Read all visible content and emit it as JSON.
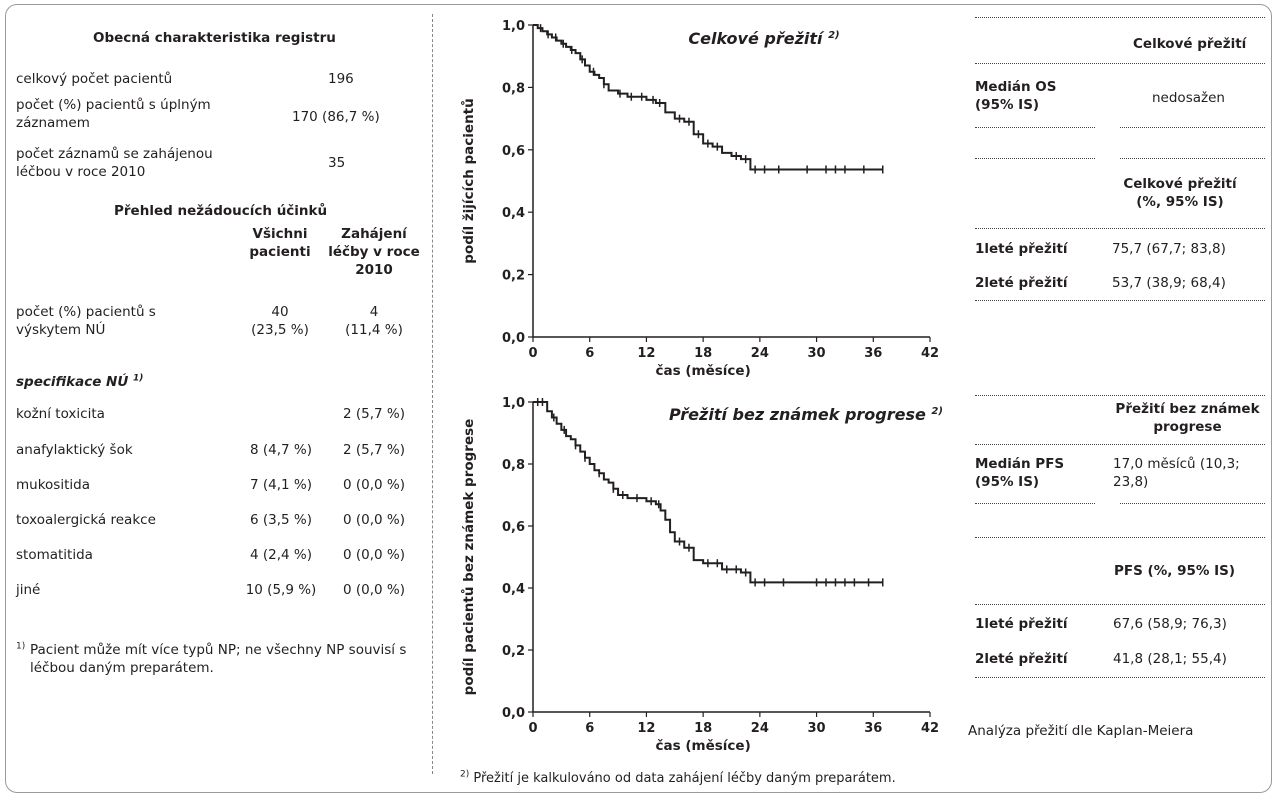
{
  "left": {
    "general_title": "Obecná charakteristika registru",
    "rows": [
      {
        "label": "celkový počet pacientů",
        "value": "196"
      },
      {
        "label": "počet (%) pacientů s úplným záznamem",
        "value": "170 (86,7 %)"
      },
      {
        "label": "počet záznamů se zahájenou léčbou v roce 2010",
        "value": "35"
      }
    ],
    "ae_title": "Přehled nežádoucích účinků",
    "col_all": "Všichni pacienti",
    "col_2010": "Zahájení léčby v roce 2010",
    "ae_count_label": "počet (%) pacientů s výskytem NÚ",
    "ae_count_all": "40",
    "ae_count_all_pct": "(23,5 %)",
    "ae_count_2010": "4",
    "ae_count_2010_pct": "(11,4 %)",
    "spec_label": "specifikace NÚ",
    "spec_sup": "1)",
    "ae_rows": [
      {
        "label": "kožní toxicita",
        "all": "",
        "y2010": "2 (5,7 %)"
      },
      {
        "label": "anafylaktický šok",
        "all": "8 (4,7 %)",
        "y2010": "2 (5,7 %)"
      },
      {
        "label": "mukositida",
        "all": "7 (4,1 %)",
        "y2010": "0 (0,0 %)"
      },
      {
        "label": "toxoalergická reakce",
        "all": "6 (3,5 %)",
        "y2010": "0 (0,0 %)"
      },
      {
        "label": "stomatitida",
        "all": "4 (2,4 %)",
        "y2010": "0 (0,0 %)"
      },
      {
        "label": "jiné",
        "all": "10 (5,9 %)",
        "y2010": "0 (0,0 %)"
      }
    ],
    "footnote_sup": "1)",
    "footnote": "Pacient může mít více typů NP; ne všechny NP souvisí s léčbou daným preparátem."
  },
  "right": {
    "os_header": "Celkové přežití",
    "os_median_label": "Medián OS (95% IS)",
    "os_median_value": "nedosažen",
    "os_rate_header": "Celkové přežití (%, 95% IS)",
    "os_1y_label": "1leté přežití",
    "os_1y_value": "75,7 (67,7; 83,8)",
    "os_2y_label": "2leté přežití",
    "os_2y_value": "53,7 (38,9; 68,4)",
    "pfs_header": "Přežití bez známek progrese",
    "pfs_median_label": "Medián PFS (95% IS)",
    "pfs_median_value": "17,0 měsíců (10,3; 23,8)",
    "pfs_rate_header": "PFS (%, 95% IS)",
    "pfs_1y_label": "1leté přežití",
    "pfs_1y_value": "67,6 (58,9; 76,3)",
    "pfs_2y_label": "2leté přežití",
    "pfs_2y_value": "41,8 (28,1; 55,4)",
    "km_note": "Analýza přežití dle Kaplan-Meiera"
  },
  "bottom_note_sup": "2)",
  "bottom_note": "Přežití je kalkulováno od data zahájení léčby daným preparátem.",
  "chart_data": [
    {
      "type": "line",
      "title": "Celkové přežití",
      "title_sup": "2)",
      "xlabel": "čas (měsíce)",
      "ylabel": "podíl žijících pacientů",
      "xlim": [
        0,
        42
      ],
      "ylim": [
        0,
        1
      ],
      "xticks": [
        0,
        6,
        12,
        18,
        24,
        30,
        36,
        42
      ],
      "yticks": [
        "0,0",
        "0,2",
        "0,4",
        "0,6",
        "0,8",
        "1,0"
      ],
      "grid": false,
      "series": [
        {
          "step": true,
          "x": [
            0,
            0.5,
            1,
            1.5,
            2,
            2.5,
            3,
            3.5,
            4,
            4.5,
            5,
            5.5,
            6,
            6.5,
            7,
            7.5,
            8,
            9,
            10,
            11,
            12,
            13,
            14,
            15,
            16,
            17,
            18,
            19,
            20,
            21,
            22,
            23,
            37
          ],
          "y": [
            1.0,
            0.99,
            0.98,
            0.97,
            0.96,
            0.95,
            0.94,
            0.93,
            0.92,
            0.91,
            0.89,
            0.87,
            0.85,
            0.84,
            0.83,
            0.81,
            0.79,
            0.78,
            0.77,
            0.77,
            0.76,
            0.75,
            0.72,
            0.7,
            0.69,
            0.65,
            0.62,
            0.61,
            0.59,
            0.58,
            0.57,
            0.537,
            0.537
          ],
          "censor_x": [
            0.8,
            1.6,
            2.4,
            3.2,
            4.1,
            5.2,
            6.4,
            7.5,
            9.2,
            10.4,
            11.5,
            12.7,
            13.4,
            15.5,
            16.5,
            17.5,
            18.5,
            19.5,
            21.5,
            22.5,
            23.5,
            24.5,
            26,
            29,
            31,
            32,
            33,
            35,
            37
          ]
        }
      ]
    },
    {
      "type": "line",
      "title": "Přežití bez známek progrese",
      "title_sup": "2)",
      "xlabel": "čas (měsíce)",
      "ylabel": "podíl pacientů bez známek progrese",
      "xlim": [
        0,
        42
      ],
      "ylim": [
        0,
        1
      ],
      "xticks": [
        0,
        6,
        12,
        18,
        24,
        30,
        36,
        42
      ],
      "yticks": [
        "0,0",
        "0,2",
        "0,4",
        "0,6",
        "0,8",
        "1,0"
      ],
      "grid": false,
      "series": [
        {
          "step": true,
          "x": [
            0,
            1.5,
            2,
            2.5,
            3,
            3.5,
            4,
            4.5,
            5,
            5.5,
            6,
            6.5,
            7,
            7.5,
            8,
            8.5,
            9,
            10,
            12,
            13,
            13.5,
            14,
            14.5,
            15,
            16,
            17,
            18,
            20,
            22,
            23,
            37
          ],
          "y": [
            1.0,
            0.97,
            0.95,
            0.93,
            0.91,
            0.89,
            0.88,
            0.86,
            0.84,
            0.82,
            0.8,
            0.78,
            0.77,
            0.75,
            0.74,
            0.72,
            0.7,
            0.69,
            0.68,
            0.67,
            0.65,
            0.62,
            0.58,
            0.55,
            0.53,
            0.49,
            0.48,
            0.46,
            0.45,
            0.418,
            0.418
          ],
          "censor_x": [
            0.5,
            1,
            2.2,
            3.3,
            4.5,
            5.5,
            7,
            8.5,
            9.5,
            11,
            12.5,
            13.3,
            15.5,
            16.5,
            18.5,
            19.5,
            20.5,
            21.5,
            22.5,
            23.5,
            24.5,
            26.5,
            30,
            31,
            32,
            33,
            34,
            35.5,
            37
          ]
        }
      ]
    }
  ]
}
